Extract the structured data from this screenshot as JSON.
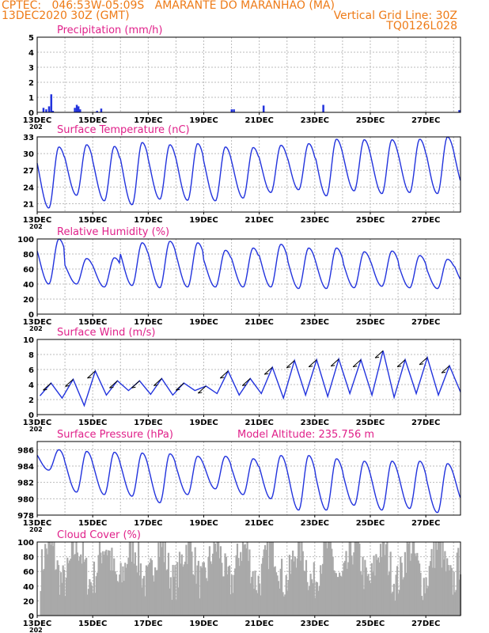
{
  "header": {
    "line1_left": "CPTEC:   046:53W-05:09S   AMARANTE DO MARANHAO (MA)",
    "line2_left": "13DEC2020 30Z (GMT)",
    "line2_right": "Vertical Grid Line: 30Z",
    "line3_right": "TQ0126L028"
  },
  "colors": {
    "header": "#ee7b17",
    "title": "#e0218a",
    "series": "#2233dd",
    "cloud": "#a9a9a9"
  },
  "x_axis": {
    "tick_labels": [
      "13DEC",
      "15DEC",
      "17DEC",
      "19DEC",
      "21DEC",
      "23DEC",
      "25DEC",
      "27DEC"
    ],
    "year_fragment": "202",
    "xlim_days": [
      0,
      15.25
    ]
  },
  "chart_data": [
    {
      "id": "precip",
      "type": "bar",
      "title": "Precipitation (mm/h)",
      "ylim": [
        0,
        5
      ],
      "yticks": [
        0,
        1,
        2,
        3,
        4,
        5
      ],
      "events": [
        {
          "day": 0.22,
          "value": 0.3
        },
        {
          "day": 0.32,
          "value": 0.2
        },
        {
          "day": 0.42,
          "value": 0.4
        },
        {
          "day": 0.5,
          "value": 1.2
        },
        {
          "day": 0.56,
          "value": 0.1
        },
        {
          "day": 1.35,
          "value": 0.3
        },
        {
          "day": 1.42,
          "value": 0.5
        },
        {
          "day": 1.48,
          "value": 0.4
        },
        {
          "day": 1.54,
          "value": 0.2
        },
        {
          "day": 2.15,
          "value": 0.1
        },
        {
          "day": 2.3,
          "value": 0.25
        },
        {
          "day": 7.0,
          "value": 0.2
        },
        {
          "day": 7.08,
          "value": 0.2
        },
        {
          "day": 8.15,
          "value": 0.45
        },
        {
          "day": 10.3,
          "value": 0.5
        },
        {
          "day": 15.2,
          "value": 0.15
        }
      ]
    },
    {
      "id": "temp",
      "type": "line",
      "title": "Surface Temperature (nC)",
      "ylim": [
        19.5,
        33
      ],
      "yticks": [
        21,
        24,
        27,
        30,
        33
      ],
      "series": [
        {
          "min_vals": [
            20.2,
            22.5,
            21.5,
            20.8,
            21.8,
            21.6,
            21.5,
            22,
            23,
            23.5,
            22.4,
            23.3,
            22.8,
            23,
            22.8,
            23.5
          ],
          "max_vals": [
            31.2,
            31.6,
            31.3,
            32,
            31.6,
            31.8,
            31.2,
            31.1,
            31.5,
            31.8,
            32.6,
            32.5,
            32.5,
            32.6,
            33,
            32.8
          ]
        }
      ]
    },
    {
      "id": "rh",
      "type": "line",
      "title": "Relative Humidity (%)",
      "ylim": [
        0,
        100
      ],
      "yticks": [
        0,
        20,
        40,
        60,
        80,
        100
      ],
      "series": [
        {
          "max_vals": [
            100,
            74,
            75,
            95,
            97,
            95,
            85,
            88,
            93,
            88,
            88,
            83,
            84,
            78,
            73,
            76
          ],
          "min_vals": [
            40,
            40,
            36,
            38,
            35,
            36,
            36,
            36,
            36,
            34,
            34,
            35,
            37,
            35,
            34,
            40
          ]
        }
      ]
    },
    {
      "id": "wind",
      "type": "line",
      "title": "Surface Wind (m/s)",
      "ylim": [
        0,
        10
      ],
      "yticks": [
        0,
        2,
        4,
        6,
        8,
        10
      ],
      "series": [
        {
          "values": [
            2.5,
            4.2,
            2.2,
            4.7,
            1.2,
            5.8,
            2.6,
            4.5,
            3.2,
            4.5,
            2.7,
            4.8,
            2.6,
            4.2,
            3.2,
            3.8,
            2.8,
            5.8,
            2.6,
            4.8,
            2.8,
            6.3,
            2.2,
            7.2,
            2.6,
            7.3,
            2.4,
            7.4,
            2.8,
            7.3,
            2.6,
            8.5,
            2.3,
            7.3,
            2.8,
            7.6,
            2.6,
            6.5,
            3.0
          ]
        }
      ]
    },
    {
      "id": "pres",
      "type": "line",
      "title": "Surface Pressure (hPa)",
      "annotation": "Model Altitude: 235.756 m",
      "ylim": [
        978,
        987
      ],
      "yticks": [
        978,
        980,
        982,
        984,
        986
      ],
      "series": [
        {
          "max_vals": [
            986,
            985.8,
            985.7,
            985.6,
            985.5,
            985.2,
            985.2,
            984.9,
            985.3,
            985.3,
            984.9,
            984.6,
            984.6,
            984.6,
            984.3,
            984.3
          ],
          "min_vals": [
            983.5,
            980.8,
            980.5,
            980.3,
            979.5,
            980.5,
            981.2,
            980.5,
            980,
            978.6,
            978.6,
            979.2,
            978.6,
            978.8,
            978.3,
            979.2
          ]
        }
      ]
    },
    {
      "id": "cloud",
      "type": "area",
      "title": "Cloud Cover (%)",
      "ylim": [
        0,
        100
      ],
      "yticks": [
        0,
        20,
        40,
        60,
        80,
        100
      ]
    }
  ]
}
